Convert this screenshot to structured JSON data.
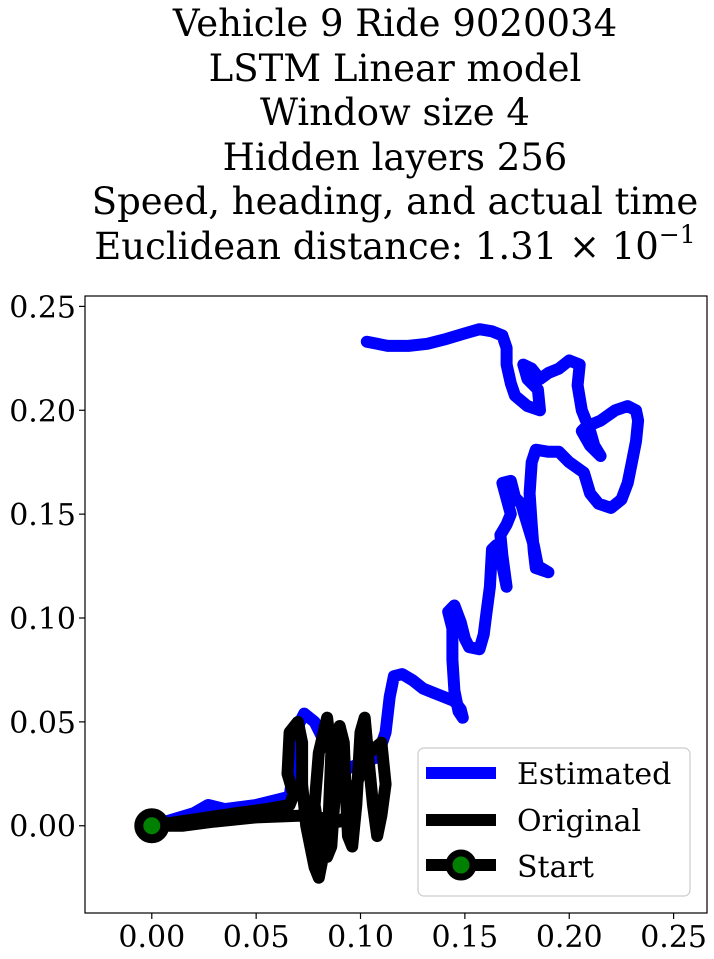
{
  "title": {
    "line1": "Vehicle 9 Ride 9020034",
    "line2": "LSTM Linear model",
    "line3": "Window size 4",
    "line4": "Hidden layers 256",
    "line5": "Speed, heading, and actual time",
    "line6_prefix": "Euclidean distance: 1.31 × 10",
    "line6_exp": "−1"
  },
  "chart_data": {
    "type": "line",
    "xlim": [
      -0.032,
      0.266
    ],
    "ylim": [
      -0.042,
      0.255
    ],
    "x_ticks": [
      0.0,
      0.05,
      0.1,
      0.15,
      0.2,
      0.25
    ],
    "x_tick_labels": [
      "0.00",
      "0.05",
      "0.10",
      "0.15",
      "0.20",
      "0.25"
    ],
    "y_ticks": [
      0.0,
      0.05,
      0.1,
      0.15,
      0.2,
      0.25
    ],
    "y_tick_labels": [
      "0.00",
      "0.05",
      "0.10",
      "0.15",
      "0.20",
      "0.25"
    ],
    "grid": false,
    "legend_position": "lower-right",
    "colors": {
      "estimated": "#0000ff",
      "original": "#000000",
      "start_marker": "#008000"
    },
    "series": [
      {
        "name": "Estimated",
        "points": [
          [
            0.0,
            0.0
          ],
          [
            0.01,
            0.003
          ],
          [
            0.02,
            0.006
          ],
          [
            0.027,
            0.01
          ],
          [
            0.035,
            0.008
          ],
          [
            0.05,
            0.01
          ],
          [
            0.066,
            0.014
          ],
          [
            0.068,
            0.028
          ],
          [
            0.07,
            0.048
          ],
          [
            0.073,
            0.054
          ],
          [
            0.078,
            0.05
          ],
          [
            0.082,
            0.042
          ],
          [
            0.086,
            0.036
          ],
          [
            0.09,
            0.03
          ],
          [
            0.095,
            0.028
          ],
          [
            0.1,
            0.03
          ],
          [
            0.108,
            0.033
          ],
          [
            0.112,
            0.045
          ],
          [
            0.114,
            0.062
          ],
          [
            0.116,
            0.072
          ],
          [
            0.12,
            0.073
          ],
          [
            0.125,
            0.07
          ],
          [
            0.13,
            0.066
          ],
          [
            0.135,
            0.064
          ],
          [
            0.14,
            0.062
          ],
          [
            0.145,
            0.06
          ],
          [
            0.148,
            0.056
          ],
          [
            0.149,
            0.052
          ],
          [
            0.147,
            0.055
          ],
          [
            0.145,
            0.065
          ],
          [
            0.144,
            0.08
          ],
          [
            0.144,
            0.095
          ],
          [
            0.142,
            0.103
          ],
          [
            0.145,
            0.106
          ],
          [
            0.148,
            0.098
          ],
          [
            0.15,
            0.09
          ],
          [
            0.152,
            0.086
          ],
          [
            0.157,
            0.085
          ],
          [
            0.159,
            0.092
          ],
          [
            0.16,
            0.1
          ],
          [
            0.162,
            0.115
          ],
          [
            0.163,
            0.133
          ],
          [
            0.165,
            0.135
          ],
          [
            0.168,
            0.125
          ],
          [
            0.17,
            0.115
          ],
          [
            0.168,
            0.13
          ],
          [
            0.167,
            0.14
          ],
          [
            0.17,
            0.145
          ],
          [
            0.172,
            0.15
          ],
          [
            0.168,
            0.165
          ],
          [
            0.172,
            0.166
          ],
          [
            0.174,
            0.158
          ],
          [
            0.177,
            0.155
          ],
          [
            0.18,
            0.145
          ],
          [
            0.183,
            0.135
          ],
          [
            0.185,
            0.125
          ],
          [
            0.19,
            0.122
          ],
          [
            0.184,
            0.124
          ],
          [
            0.183,
            0.132
          ],
          [
            0.182,
            0.145
          ],
          [
            0.181,
            0.16
          ],
          [
            0.182,
            0.175
          ],
          [
            0.184,
            0.181
          ],
          [
            0.19,
            0.18
          ],
          [
            0.195,
            0.18
          ],
          [
            0.2,
            0.175
          ],
          [
            0.207,
            0.17
          ],
          [
            0.21,
            0.16
          ],
          [
            0.214,
            0.155
          ],
          [
            0.22,
            0.153
          ],
          [
            0.225,
            0.157
          ],
          [
            0.228,
            0.165
          ],
          [
            0.23,
            0.175
          ],
          [
            0.232,
            0.185
          ],
          [
            0.233,
            0.195
          ],
          [
            0.232,
            0.2
          ],
          [
            0.228,
            0.202
          ],
          [
            0.222,
            0.2
          ],
          [
            0.215,
            0.195
          ],
          [
            0.208,
            0.192
          ],
          [
            0.206,
            0.19
          ],
          [
            0.21,
            0.183
          ],
          [
            0.215,
            0.178
          ],
          [
            0.212,
            0.183
          ],
          [
            0.21,
            0.19
          ],
          [
            0.206,
            0.2
          ],
          [
            0.204,
            0.212
          ],
          [
            0.205,
            0.222
          ],
          [
            0.2,
            0.224
          ],
          [
            0.195,
            0.22
          ],
          [
            0.19,
            0.218
          ],
          [
            0.186,
            0.215
          ],
          [
            0.182,
            0.22
          ],
          [
            0.178,
            0.222
          ],
          [
            0.18,
            0.215
          ],
          [
            0.185,
            0.21
          ],
          [
            0.186,
            0.2
          ],
          [
            0.18,
            0.202
          ],
          [
            0.174,
            0.207
          ],
          [
            0.172,
            0.213
          ],
          [
            0.17,
            0.222
          ],
          [
            0.17,
            0.23
          ],
          [
            0.168,
            0.236
          ],
          [
            0.163,
            0.238
          ],
          [
            0.157,
            0.239
          ],
          [
            0.15,
            0.237
          ],
          [
            0.14,
            0.234
          ],
          [
            0.132,
            0.232
          ],
          [
            0.123,
            0.231
          ],
          [
            0.113,
            0.231
          ],
          [
            0.108,
            0.232
          ],
          [
            0.103,
            0.233
          ]
        ]
      },
      {
        "name": "Original",
        "points": [
          [
            0.0,
            0.0
          ],
          [
            0.02,
            0.003
          ],
          [
            0.04,
            0.006
          ],
          [
            0.055,
            0.008
          ],
          [
            0.066,
            0.01
          ],
          [
            0.068,
            0.015
          ],
          [
            0.065,
            0.025
          ],
          [
            0.066,
            0.045
          ],
          [
            0.07,
            0.05
          ],
          [
            0.072,
            0.04
          ],
          [
            0.072,
            0.02
          ],
          [
            0.074,
            0.0
          ],
          [
            0.076,
            -0.01
          ],
          [
            0.078,
            -0.02
          ],
          [
            0.08,
            -0.025
          ],
          [
            0.082,
            -0.015
          ],
          [
            0.078,
            0.01
          ],
          [
            0.08,
            0.035
          ],
          [
            0.084,
            0.052
          ],
          [
            0.086,
            0.035
          ],
          [
            0.085,
            0.01
          ],
          [
            0.084,
            -0.015
          ],
          [
            0.086,
            -0.01
          ],
          [
            0.088,
            0.02
          ],
          [
            0.09,
            0.048
          ],
          [
            0.092,
            0.04
          ],
          [
            0.093,
            0.015
          ],
          [
            0.094,
            -0.005
          ],
          [
            0.096,
            -0.01
          ],
          [
            0.098,
            0.01
          ],
          [
            0.1,
            0.045
          ],
          [
            0.102,
            0.052
          ],
          [
            0.104,
            0.03
          ],
          [
            0.106,
            0.01
          ],
          [
            0.108,
            -0.005
          ],
          [
            0.11,
            0.005
          ],
          [
            0.112,
            0.02
          ],
          [
            0.11,
            0.04
          ],
          [
            0.104,
            0.035
          ],
          [
            0.098,
            0.02
          ],
          [
            0.094,
            0.005
          ],
          [
            0.09,
            0.002
          ],
          [
            0.075,
            0.005
          ],
          [
            0.05,
            0.004
          ],
          [
            0.03,
            0.002
          ],
          [
            0.015,
            0.0
          ],
          [
            0.0,
            0.0
          ]
        ]
      }
    ],
    "start_point": [
      0.0,
      0.0
    ],
    "legend": [
      {
        "label": "Estimated",
        "series": "Estimated"
      },
      {
        "label": "Original",
        "series": "Original"
      },
      {
        "label": "Start",
        "series": "start"
      }
    ]
  }
}
